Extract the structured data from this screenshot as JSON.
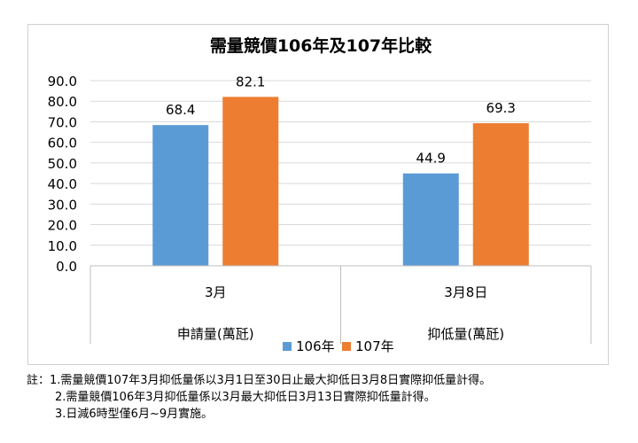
{
  "chart_data": {
    "type": "bar",
    "title": "需量競價106年及107年比較",
    "group_label": "申請量(萬瓩)",
    "secondary_group_label": "抑低量(萬瓩)",
    "categories": [
      "3月",
      "3月8日"
    ],
    "series": [
      {
        "name": "106年",
        "values": [
          68.4,
          44.9
        ],
        "color": "#5b9bd5"
      },
      {
        "name": "107年",
        "values": [
          82.1,
          69.3
        ],
        "color": "#ed7d31"
      }
    ],
    "ylim": [
      0,
      90
    ],
    "yticks": [
      "0.0",
      "10.0",
      "20.0",
      "30.0",
      "40.0",
      "50.0",
      "60.0",
      "70.0",
      "80.0",
      "90.0"
    ],
    "grid": true,
    "legend": "bottom"
  },
  "notes": {
    "line1": "註：1.需量競價107年3月抑低量係以3月1日至30日止最大抑低日3月8日實際抑低量計得。",
    "line2": "2.需量競價106年3月抑低量係以3月最大抑低日3月13日實際抑低量計得。",
    "line3": "3.日減6時型僅6月~9月實施。"
  }
}
